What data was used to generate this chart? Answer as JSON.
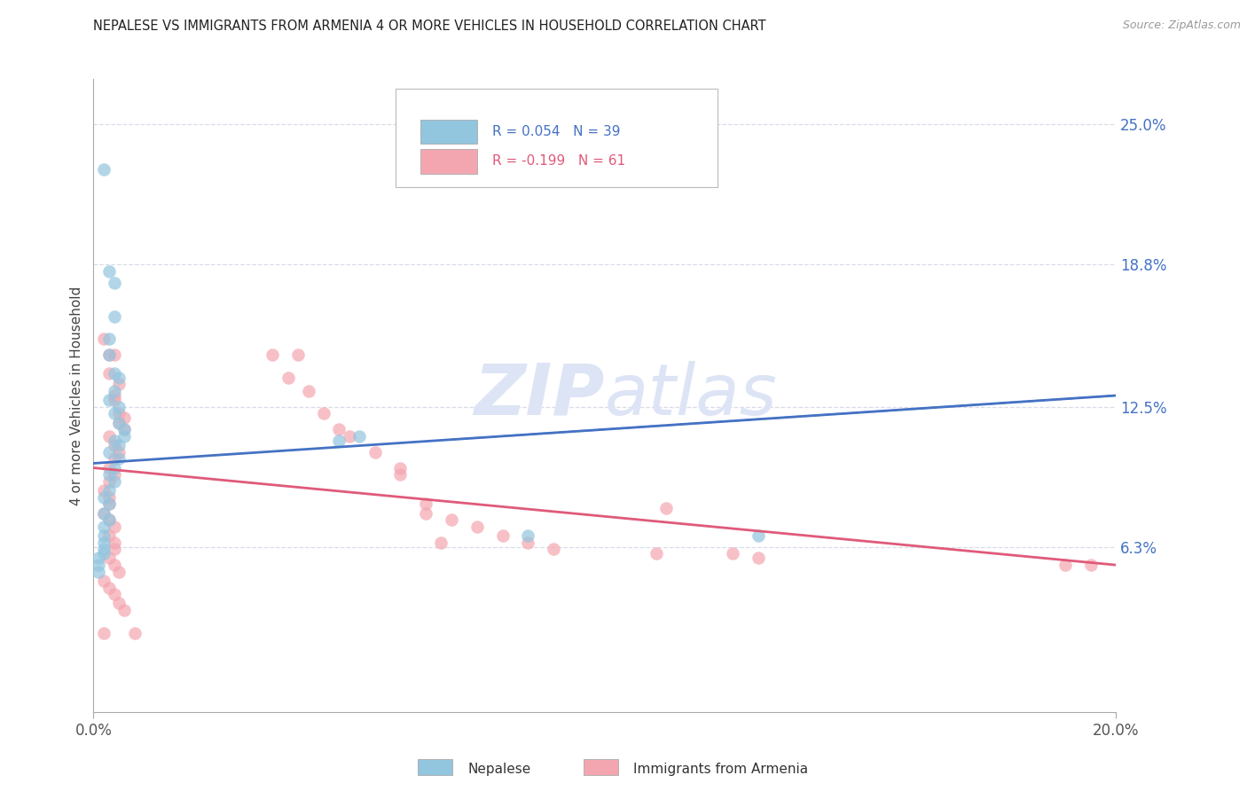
{
  "title": "NEPALESE VS IMMIGRANTS FROM ARMENIA 4 OR MORE VEHICLES IN HOUSEHOLD CORRELATION CHART",
  "source": "Source: ZipAtlas.com",
  "ylabel_label": "4 or more Vehicles in Household",
  "right_ytick_labels": [
    "25.0%",
    "18.8%",
    "12.5%",
    "6.3%"
  ],
  "right_ytick_values": [
    0.25,
    0.188,
    0.125,
    0.063
  ],
  "xmin": 0.0,
  "xmax": 0.2,
  "ymin": -0.01,
  "ymax": 0.27,
  "blue_color": "#92c5de",
  "pink_color": "#f4a6b0",
  "blue_line_color": "#4472c4",
  "pink_line_color": "#e05a7a",
  "dashed_line_color": "#7090c8",
  "right_axis_color": "#4472c4",
  "watermark": "ZIPatlas",
  "watermark_color": "#dde4f5",
  "bg_color": "#ffffff",
  "grid_color": "#d8dce8",
  "blue_scatter": [
    [
      0.002,
      0.23
    ],
    [
      0.003,
      0.185
    ],
    [
      0.004,
      0.18
    ],
    [
      0.004,
      0.165
    ],
    [
      0.003,
      0.155
    ],
    [
      0.003,
      0.148
    ],
    [
      0.004,
      0.14
    ],
    [
      0.005,
      0.138
    ],
    [
      0.004,
      0.132
    ],
    [
      0.003,
      0.128
    ],
    [
      0.005,
      0.125
    ],
    [
      0.004,
      0.122
    ],
    [
      0.005,
      0.118
    ],
    [
      0.006,
      0.115
    ],
    [
      0.006,
      0.112
    ],
    [
      0.004,
      0.11
    ],
    [
      0.005,
      0.108
    ],
    [
      0.003,
      0.105
    ],
    [
      0.005,
      0.102
    ],
    [
      0.004,
      0.098
    ],
    [
      0.003,
      0.095
    ],
    [
      0.004,
      0.092
    ],
    [
      0.003,
      0.088
    ],
    [
      0.002,
      0.085
    ],
    [
      0.003,
      0.082
    ],
    [
      0.002,
      0.078
    ],
    [
      0.003,
      0.075
    ],
    [
      0.002,
      0.072
    ],
    [
      0.002,
      0.068
    ],
    [
      0.002,
      0.065
    ],
    [
      0.002,
      0.062
    ],
    [
      0.002,
      0.06
    ],
    [
      0.001,
      0.058
    ],
    [
      0.001,
      0.055
    ],
    [
      0.001,
      0.052
    ],
    [
      0.048,
      0.11
    ],
    [
      0.052,
      0.112
    ],
    [
      0.13,
      0.068
    ],
    [
      0.085,
      0.068
    ]
  ],
  "pink_scatter": [
    [
      0.002,
      0.155
    ],
    [
      0.003,
      0.148
    ],
    [
      0.004,
      0.148
    ],
    [
      0.003,
      0.14
    ],
    [
      0.005,
      0.135
    ],
    [
      0.004,
      0.13
    ],
    [
      0.004,
      0.128
    ],
    [
      0.005,
      0.122
    ],
    [
      0.006,
      0.12
    ],
    [
      0.005,
      0.118
    ],
    [
      0.006,
      0.115
    ],
    [
      0.003,
      0.112
    ],
    [
      0.004,
      0.108
    ],
    [
      0.005,
      0.105
    ],
    [
      0.004,
      0.102
    ],
    [
      0.003,
      0.098
    ],
    [
      0.004,
      0.095
    ],
    [
      0.003,
      0.092
    ],
    [
      0.002,
      0.088
    ],
    [
      0.003,
      0.085
    ],
    [
      0.003,
      0.082
    ],
    [
      0.002,
      0.078
    ],
    [
      0.003,
      0.075
    ],
    [
      0.004,
      0.072
    ],
    [
      0.003,
      0.068
    ],
    [
      0.004,
      0.065
    ],
    [
      0.004,
      0.062
    ],
    [
      0.003,
      0.058
    ],
    [
      0.004,
      0.055
    ],
    [
      0.005,
      0.052
    ],
    [
      0.002,
      0.048
    ],
    [
      0.003,
      0.045
    ],
    [
      0.004,
      0.042
    ],
    [
      0.005,
      0.038
    ],
    [
      0.006,
      0.035
    ],
    [
      0.002,
      0.025
    ],
    [
      0.008,
      0.025
    ],
    [
      0.035,
      0.148
    ],
    [
      0.04,
      0.148
    ],
    [
      0.038,
      0.138
    ],
    [
      0.042,
      0.132
    ],
    [
      0.045,
      0.122
    ],
    [
      0.048,
      0.115
    ],
    [
      0.05,
      0.112
    ],
    [
      0.055,
      0.105
    ],
    [
      0.06,
      0.098
    ],
    [
      0.06,
      0.095
    ],
    [
      0.065,
      0.082
    ],
    [
      0.065,
      0.078
    ],
    [
      0.07,
      0.075
    ],
    [
      0.075,
      0.072
    ],
    [
      0.08,
      0.068
    ],
    [
      0.085,
      0.065
    ],
    [
      0.09,
      0.062
    ],
    [
      0.11,
      0.06
    ],
    [
      0.125,
      0.06
    ],
    [
      0.13,
      0.058
    ],
    [
      0.19,
      0.055
    ],
    [
      0.195,
      0.055
    ],
    [
      0.112,
      0.08
    ],
    [
      0.068,
      0.065
    ]
  ]
}
